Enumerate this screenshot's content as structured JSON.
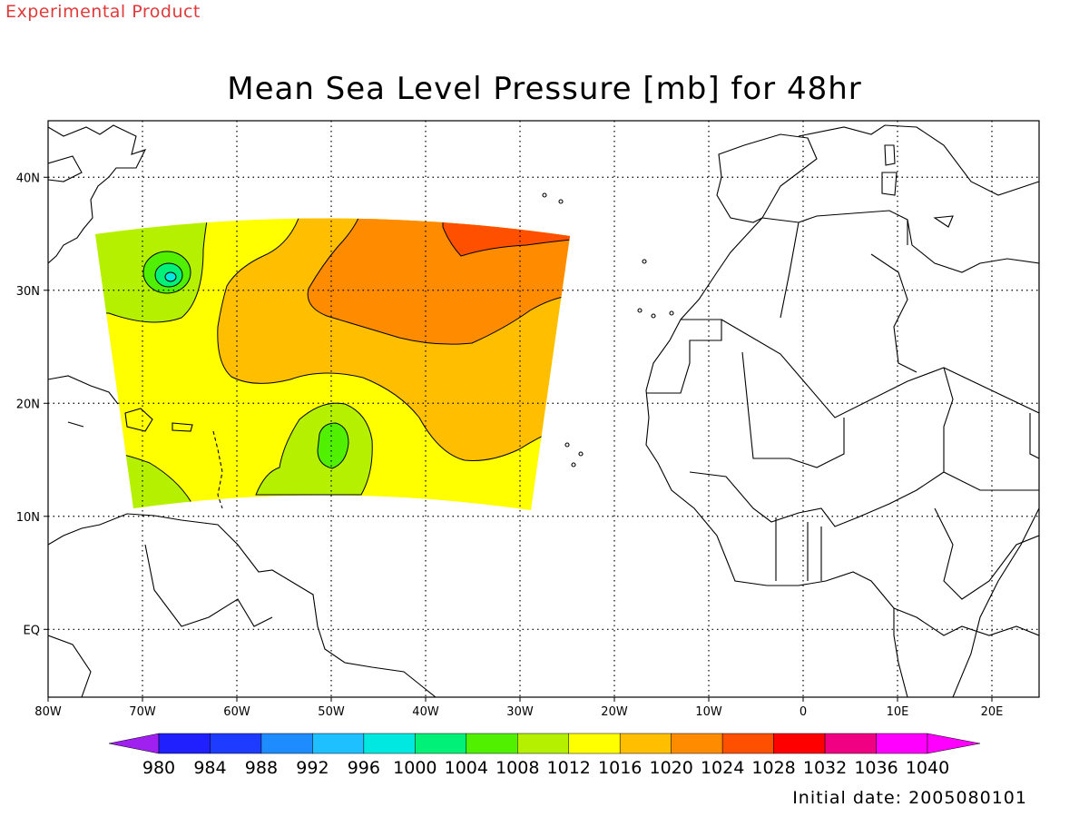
{
  "header": {
    "experimental_label": "Experimental Product",
    "title": "Mean Sea Level Pressure [mb] for 48hr"
  },
  "footer": {
    "initial_date": "Initial date: 2005080101"
  },
  "map": {
    "lon_range": [
      -80,
      25
    ],
    "lat_range": [
      -6,
      45
    ],
    "lon_ticks": [
      {
        "value": -80,
        "label": "80W"
      },
      {
        "value": -70,
        "label": "70W"
      },
      {
        "value": -60,
        "label": "60W"
      },
      {
        "value": -50,
        "label": "50W"
      },
      {
        "value": -40,
        "label": "40W"
      },
      {
        "value": -30,
        "label": "30W"
      },
      {
        "value": -20,
        "label": "20W"
      },
      {
        "value": -10,
        "label": "10W"
      },
      {
        "value": 0,
        "label": "0"
      },
      {
        "value": 10,
        "label": "10E"
      },
      {
        "value": 20,
        "label": "20E"
      }
    ],
    "lat_ticks": [
      {
        "value": 40,
        "label": "40N"
      },
      {
        "value": 30,
        "label": "30N"
      },
      {
        "value": 20,
        "label": "20N"
      },
      {
        "value": 10,
        "label": "10N"
      },
      {
        "value": 0,
        "label": "EQ"
      }
    ],
    "gridlines": "dotted"
  },
  "colorbar": {
    "levels": [
      "980",
      "984",
      "988",
      "992",
      "996",
      "1000",
      "1004",
      "1008",
      "1012",
      "1016",
      "1020",
      "1024",
      "1028",
      "1032",
      "1036",
      "1040"
    ],
    "colors": [
      "#a020f0",
      "#2020ff",
      "#1e3cff",
      "#1e8cff",
      "#1ec0ff",
      "#00e8e0",
      "#00f078",
      "#50f000",
      "#b4f000",
      "#ffff00",
      "#ffbe00",
      "#ff8c00",
      "#ff5000",
      "#ff0000",
      "#f00082",
      "#ff00ff",
      "#ff00ff"
    ]
  },
  "field": {
    "units": "mb",
    "features": [
      {
        "type": "low",
        "lon": -67.5,
        "lat": 31.5,
        "min_level": "1004-1008"
      },
      {
        "type": "low",
        "lon": -49.5,
        "lat": 16.8,
        "min_level": "1004-1008"
      },
      {
        "type": "high",
        "lon": -30,
        "lat": 34.5,
        "max_level": "1024-1028"
      }
    ]
  }
}
